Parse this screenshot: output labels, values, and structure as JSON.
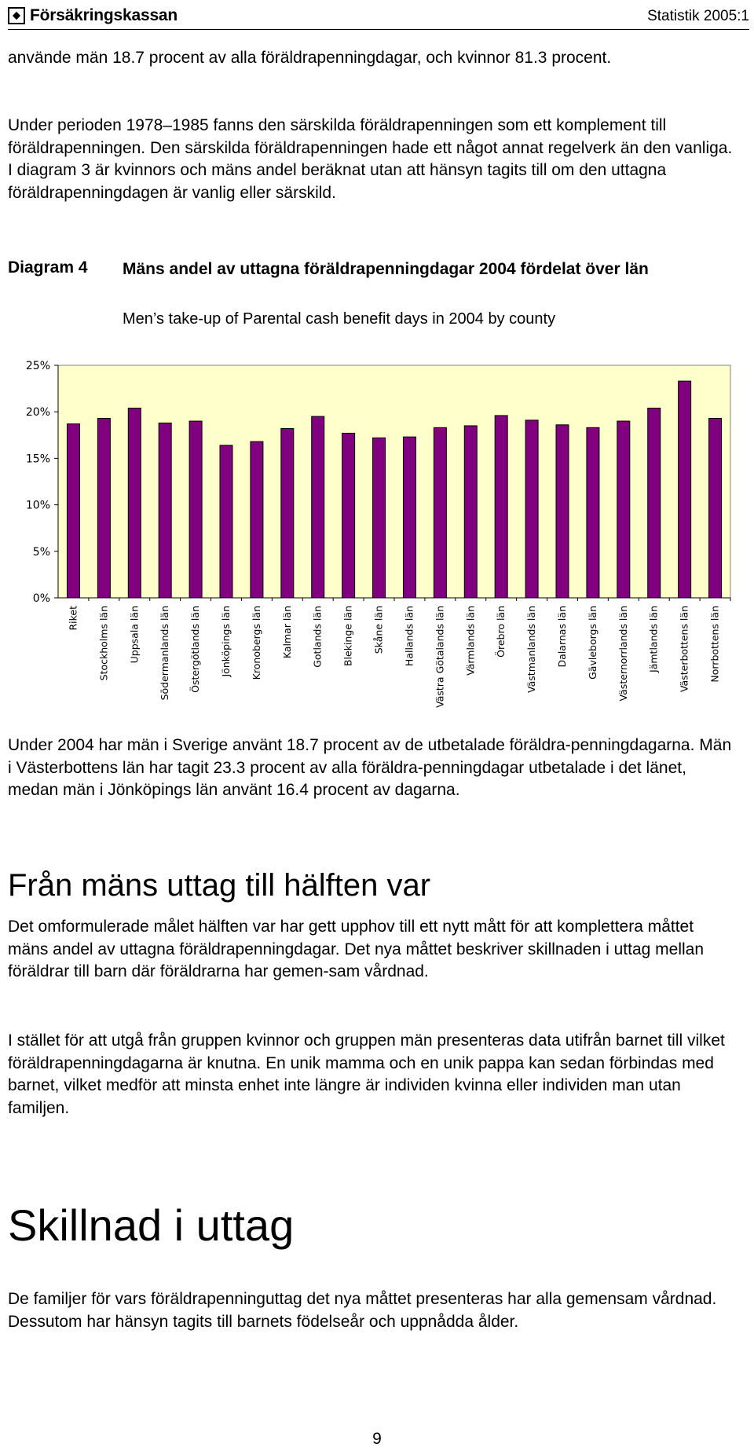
{
  "header": {
    "logo_text": "Försäkringskassan",
    "series_label": "Statistik 2005:1"
  },
  "paragraphs": {
    "p1": "använde män 18.7 procent av alla föräldrapenningdagar, och kvinnor 81.3 procent.",
    "p2": "Under perioden 1978–1985  fanns den särskilda föräldrapenningen som ett komplement till föräldrapenningen. Den särskilda föräldrapenningen hade ett något annat regelverk än den vanliga. I diagram 3 är kvinnors och mäns andel beräknat utan att hänsyn tagits till om den uttagna föräldrapenningdagen är vanlig eller särskild.",
    "p3": "Under 2004 har män i Sverige använt 18.7 procent av de utbetalade föräldra-penningdagarna. Män i Västerbottens län har tagit 23.3 procent av alla föräldra-penningdagar utbetalade i det länet, medan män i Jönköpings län använt 16.4 procent av dagarna.",
    "p4": "Det omformulerade målet hälften var har gett upphov till ett nytt mått för att komplettera måttet mäns andel av uttagna föräldrapenningdagar. Det nya måttet beskriver skillnaden i uttag mellan föräldrar till barn där föräldrarna har gemen-sam vårdnad.",
    "p5": "I stället för att utgå från gruppen kvinnor och gruppen män presenteras data utifrån barnet till vilket föräldrapenningdagarna är knutna. En unik mamma och en unik pappa kan sedan förbindas med barnet, vilket medför att minsta enhet inte längre är individen kvinna eller individen man utan familjen.",
    "p6": "De familjer för vars föräldrapenninguttag det nya måttet presenteras har alla gemensam vårdnad. Dessutom har hänsyn tagits till barnets födelseår och uppnådda ålder."
  },
  "diagram": {
    "label": "Diagram 4",
    "title": "Mäns andel av uttagna föräldrapenningdagar 2004 fördelat över län",
    "subtitle": "Men’s take-up of Parental cash benefit days in 2004 by county"
  },
  "headings": {
    "h1": "Från mäns uttag till hälften var",
    "h2": "Skillnad i uttag"
  },
  "page_number": "9",
  "chart_data": {
    "type": "bar",
    "title": "Mäns andel av uttagna föräldrapenningdagar 2004 fördelat över län",
    "categories": [
      "Riket",
      "Stockholms län",
      "Uppsala län",
      "Södermanlands län",
      "Östergötlands län",
      "Jönköpings län",
      "Kronobergs län",
      "Kalmar län",
      "Gotlands län",
      "Blekinge län",
      "Skåne län",
      "Hallands län",
      "Västra Götalands län",
      "Värmlands län",
      "Örebro län",
      "Västmanlands län",
      "Dalarnas län",
      "Gävleborgs län",
      "Västernorrlands län",
      "Jämtlands län",
      "Västerbottens län",
      "Norrbottens län"
    ],
    "values": [
      18.7,
      19.3,
      20.4,
      18.8,
      19.0,
      16.4,
      16.8,
      18.2,
      19.5,
      17.7,
      17.2,
      17.3,
      18.3,
      18.5,
      19.6,
      19.1,
      18.6,
      18.3,
      19.0,
      20.4,
      23.3,
      19.3
    ],
    "y_ticks": [
      "0%",
      "5%",
      "10%",
      "15%",
      "20%",
      "25%"
    ],
    "ylim": [
      0,
      25
    ],
    "grid": false,
    "colors": {
      "bar": "#800080",
      "bar_stroke": "#000000",
      "plot_bg": "#ffffcc"
    }
  }
}
